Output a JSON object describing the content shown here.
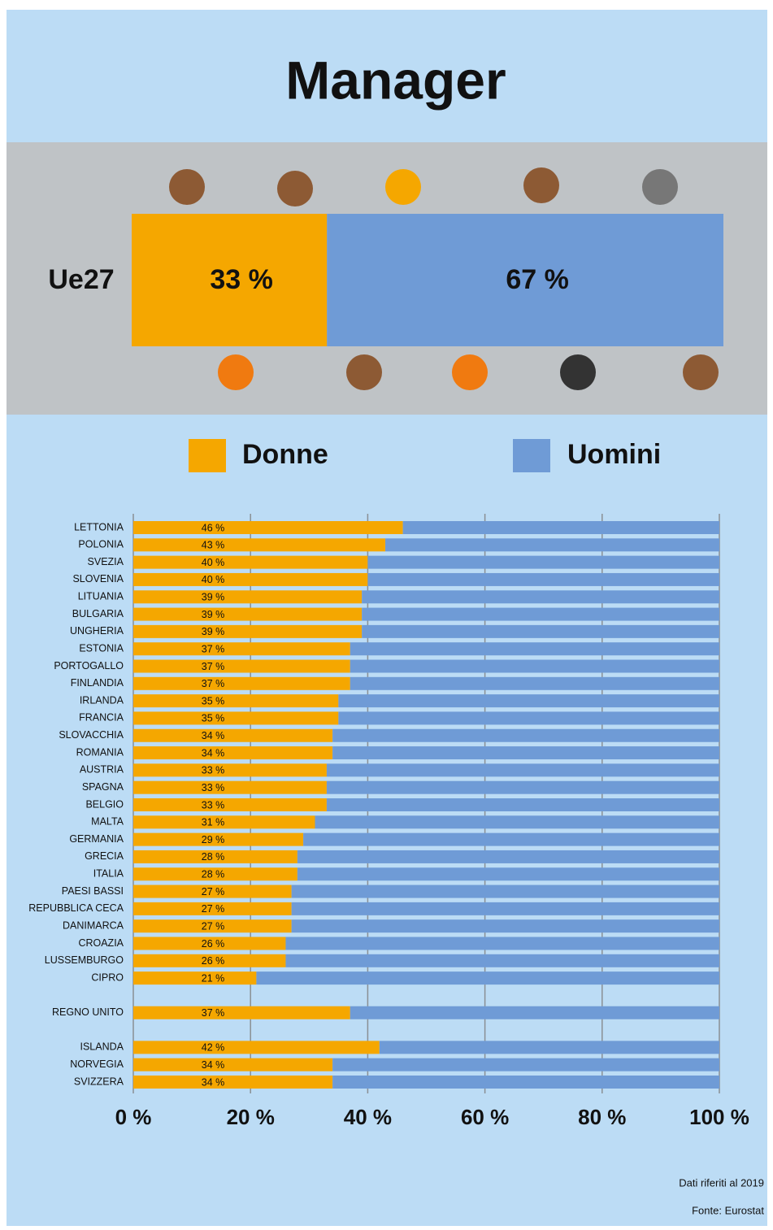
{
  "title": "Manager",
  "summary": {
    "label": "Ue27",
    "values": [
      33,
      67
    ],
    "value_labels": [
      "33 %",
      "67 %"
    ]
  },
  "chart_data": {
    "type": "bar",
    "orientation": "horizontal",
    "stacked": true,
    "categories": [
      "LETTONIA",
      "POLONIA",
      "SVEZIA",
      "SLOVENIA",
      "LITUANIA",
      "BULGARIA",
      "UNGHERIA",
      "ESTONIA",
      "PORTOGALLO",
      "FINLANDIA",
      "IRLANDA",
      "FRANCIA",
      "SLOVACCHIA",
      "ROMANIA",
      "AUSTRIA",
      "SPAGNA",
      "BELGIO",
      "MALTA",
      "GERMANIA",
      "GRECIA",
      "ITALIA",
      "PAESI BASSI",
      "REPUBBLICA CECA",
      "DANIMARCA",
      "CROAZIA",
      "LUSSEMBURGO",
      "CIPRO",
      null,
      "REGNO UNITO",
      null,
      "ISLANDA",
      "NORVEGIA",
      "SVIZZERA"
    ],
    "series": [
      {
        "name": "Donne",
        "color": "#f5a700",
        "values": [
          46,
          43,
          40,
          40,
          39,
          39,
          39,
          37,
          37,
          37,
          35,
          35,
          34,
          34,
          33,
          33,
          33,
          31,
          29,
          28,
          28,
          27,
          27,
          27,
          26,
          26,
          21,
          null,
          37,
          null,
          42,
          34,
          34
        ],
        "value_labels": [
          "46 %",
          "43 %",
          "40 %",
          "40 %",
          "39 %",
          "39 %",
          "39 %",
          "37 %",
          "37 %",
          "37 %",
          "35 %",
          "35 %",
          "34 %",
          "34 %",
          "33 %",
          "33 %",
          "33 %",
          "31 %",
          "29 %",
          "28 %",
          "28 %",
          "27 %",
          "27 %",
          "27 %",
          "26 %",
          "26 %",
          "21 %",
          null,
          "37 %",
          null,
          "42 %",
          "34 %",
          "34 %"
        ]
      },
      {
        "name": "Uomini",
        "color": "#6f9bd6",
        "values": [
          54,
          57,
          60,
          60,
          61,
          61,
          61,
          63,
          63,
          63,
          65,
          65,
          66,
          66,
          67,
          67,
          67,
          69,
          71,
          72,
          72,
          73,
          73,
          73,
          74,
          74,
          79,
          null,
          63,
          null,
          58,
          66,
          66
        ]
      }
    ],
    "xlim": [
      0,
      100
    ],
    "xticks": [
      {
        "value": 0,
        "label": "0 %"
      },
      {
        "value": 20,
        "label": "20 %"
      },
      {
        "value": 40,
        "label": "40 %"
      },
      {
        "value": 60,
        "label": "60 %"
      },
      {
        "value": 80,
        "label": "80 %"
      },
      {
        "value": 100,
        "label": "100 %"
      }
    ],
    "grid": true
  },
  "note": "Dati riferiti al 2019",
  "source": "Fonte: Eurostat"
}
